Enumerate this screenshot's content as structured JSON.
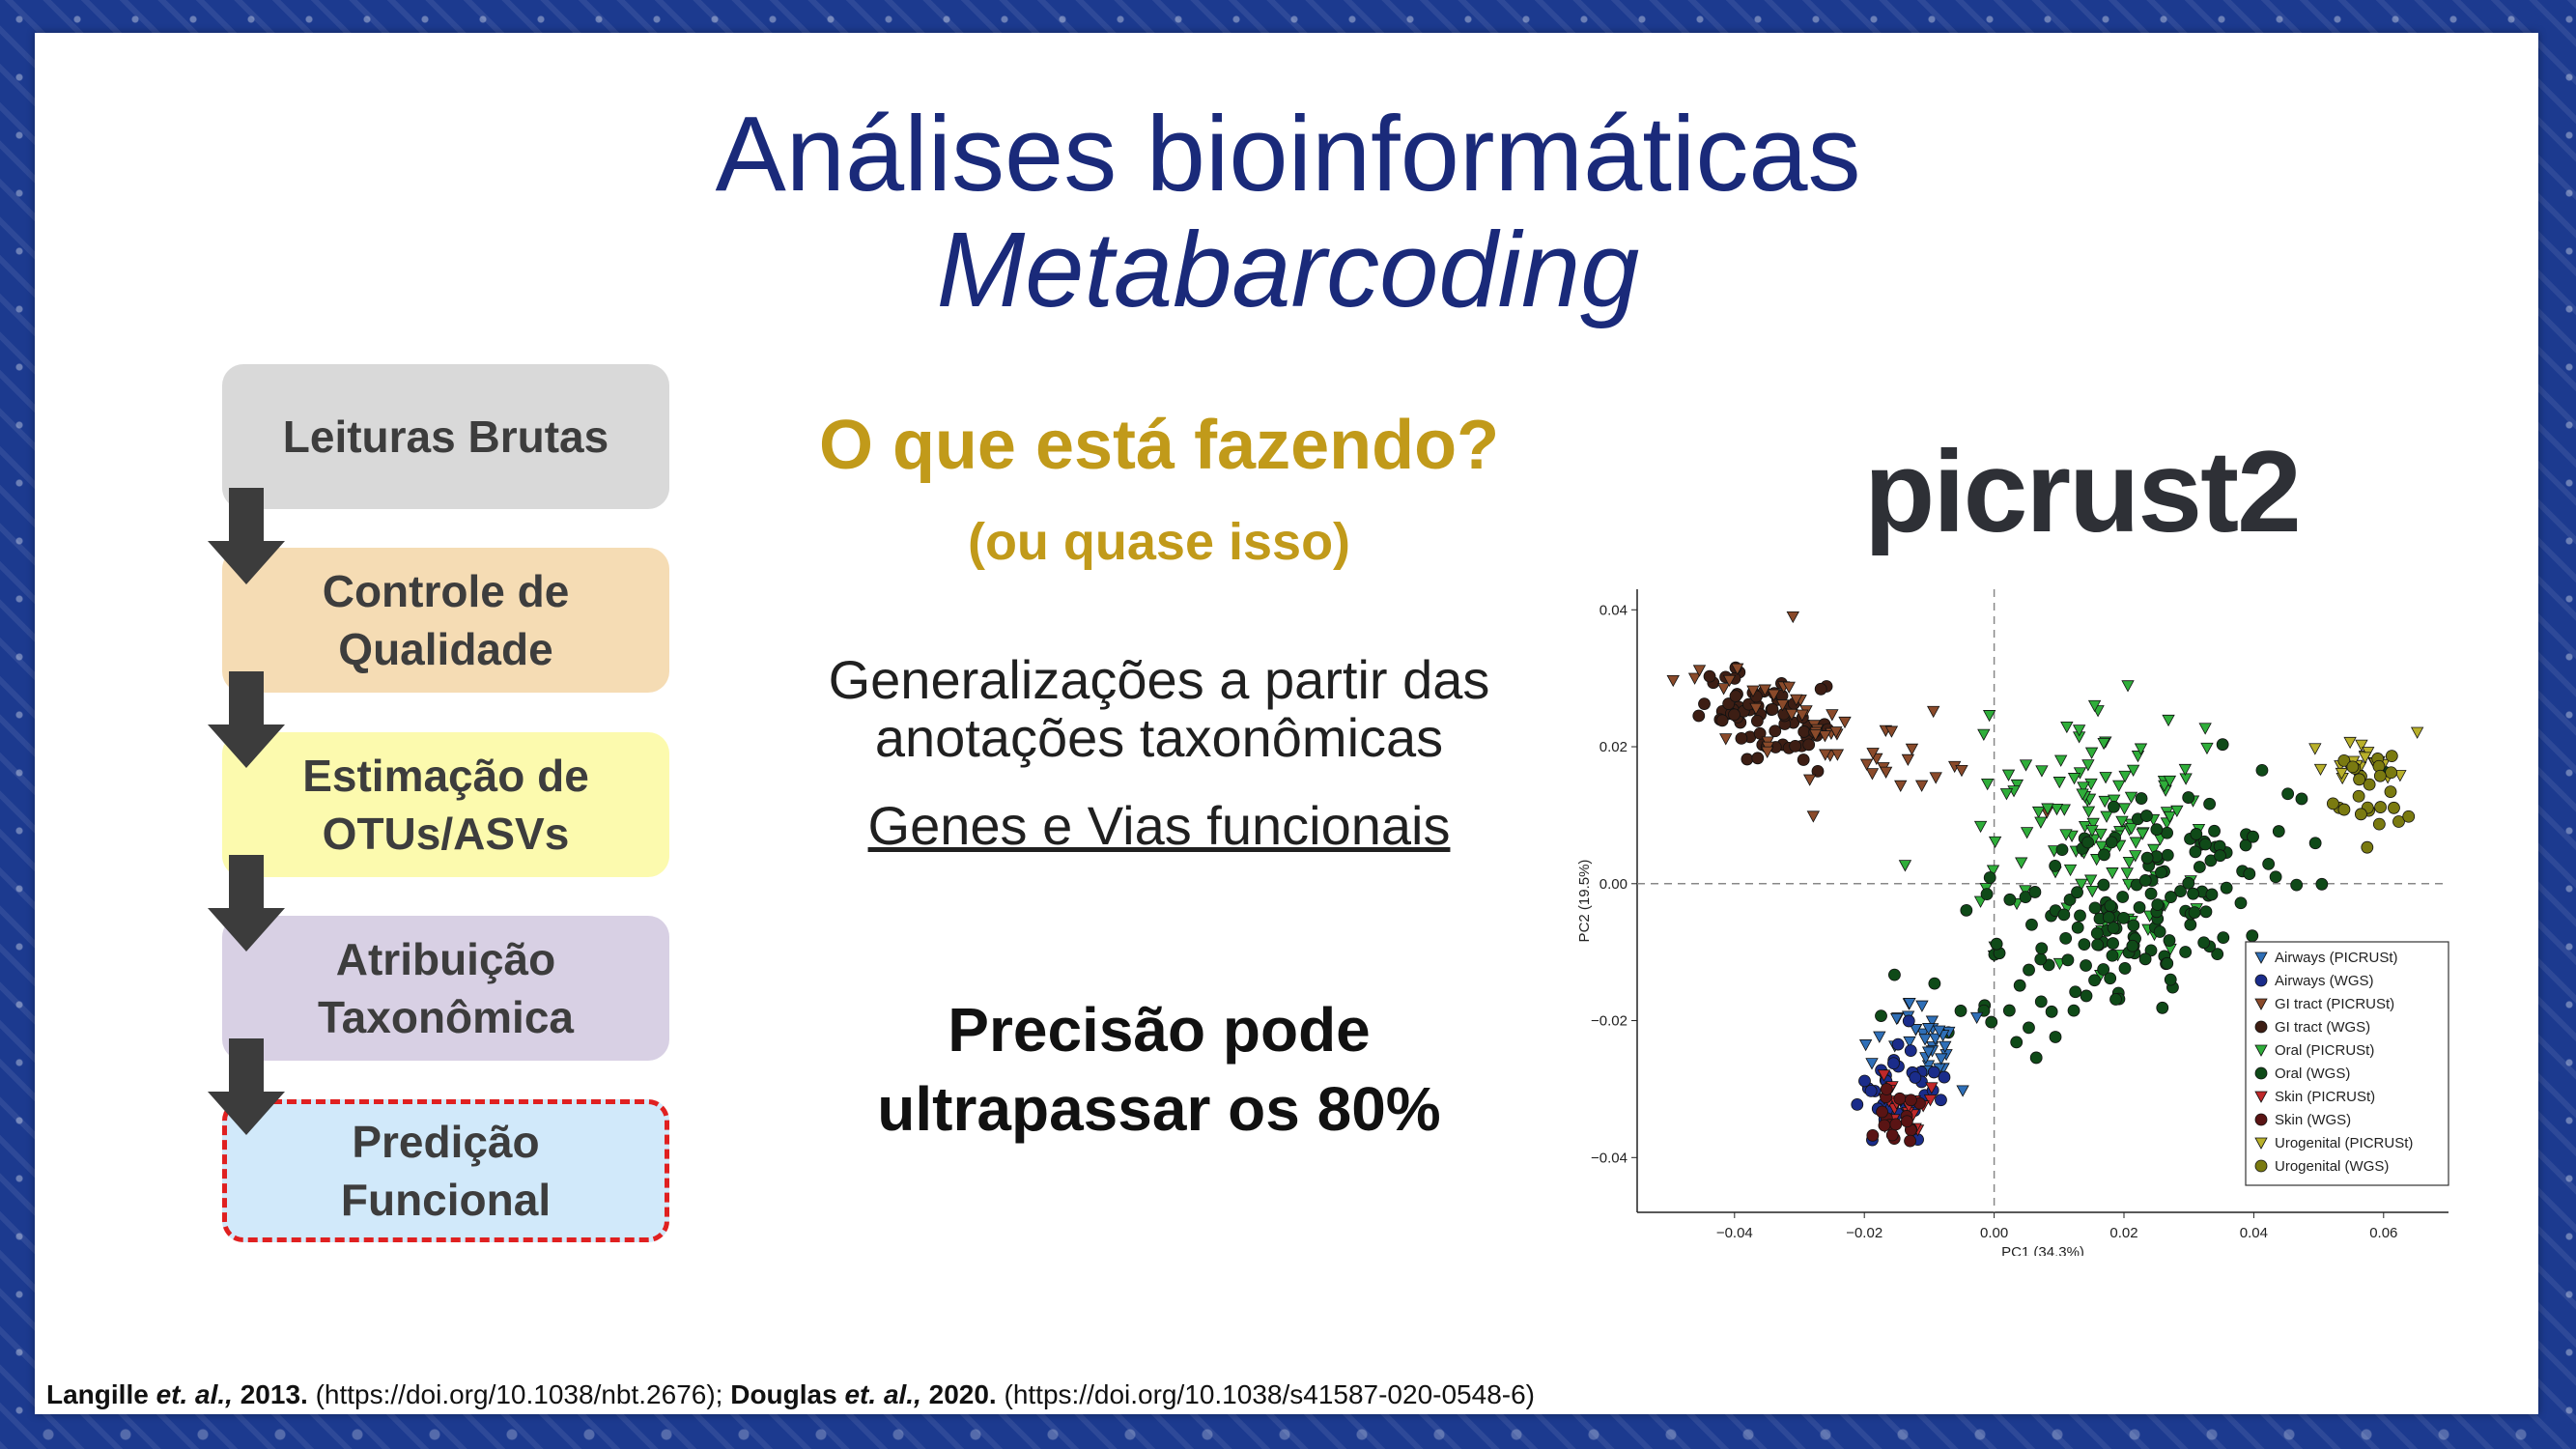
{
  "title": {
    "line1": "Análises bioinformáticas",
    "line2": "Metabarcoding"
  },
  "pipeline": [
    "Leituras Brutas",
    "Controle de\nQualidade",
    "Estimação de\nOTUs/ASVs",
    "Atribuição\nTaxonômica",
    "Predição\nFuncional"
  ],
  "question": {
    "main": "O que está fazendo?",
    "sub": "(ou quase isso)"
  },
  "generalization": {
    "line1": "Generalizações a partir das",
    "line2": "anotações taxonômicas",
    "link": "Genes e Vias funcionais"
  },
  "precision": {
    "line1": "Precisão pode",
    "line2": "ultrapassar os 80%"
  },
  "logo": "picrust2",
  "colors": {
    "title": "#1a2a7a",
    "accent": "#c19a1a",
    "highlight_border": "#e02020"
  },
  "reference": {
    "a1": "Langille",
    "a1_et": "et. al.,",
    "a1_year": "2013.",
    "a1_doi": "(https://doi.org/10.1038/nbt.2676);",
    "a2": "Douglas",
    "a2_et": "et. al.,",
    "a2_year": "2020.",
    "a2_doi": "(https://doi.org/10.1038/s41587-020-0548-6)"
  },
  "chart_data": {
    "type": "scatter",
    "xlabel": "PC1 (34.3%)",
    "ylabel": "PC2 (19.5%)",
    "xlim": [
      -0.055,
      0.07
    ],
    "ylim": [
      -0.048,
      0.043
    ],
    "xticks": [
      "−0.04",
      "−0.02",
      "0.00",
      "0.02",
      "0.04",
      "0.06"
    ],
    "yticks": [
      "0.04",
      "0.02",
      "0.00",
      "−0.02",
      "−0.04"
    ],
    "legend": [
      {
        "label": "Airways (PICRUSt)",
        "color": "#2f6fb7",
        "marker": "triangle"
      },
      {
        "label": "Airways (WGS)",
        "color": "#1a2c8a",
        "marker": "circle"
      },
      {
        "label": "GI tract (PICRUSt)",
        "color": "#8a4a2a",
        "marker": "triangle"
      },
      {
        "label": "GI tract (WGS)",
        "color": "#3d1e14",
        "marker": "circle"
      },
      {
        "label": "Oral (PICRUSt)",
        "color": "#2fae3a",
        "marker": "triangle"
      },
      {
        "label": "Oral (WGS)",
        "color": "#0f4a18",
        "marker": "circle"
      },
      {
        "label": "Skin (PICRUSt)",
        "color": "#c0282a",
        "marker": "triangle"
      },
      {
        "label": "Skin (WGS)",
        "color": "#5a1414",
        "marker": "circle"
      },
      {
        "label": "Urogenital (PICRUSt)",
        "color": "#b8b02a",
        "marker": "triangle"
      },
      {
        "label": "Urogenital (WGS)",
        "color": "#7a7a10",
        "marker": "circle"
      }
    ],
    "clusters": [
      {
        "series": 3,
        "xc": -0.035,
        "yc": 0.024,
        "sx": 0.005,
        "sy": 0.003,
        "n": 70,
        "slope": -0.2
      },
      {
        "series": 2,
        "xc": -0.025,
        "yc": 0.022,
        "sx": 0.01,
        "sy": 0.003,
        "n": 55,
        "slope": -0.35
      },
      {
        "series": 4,
        "xc": 0.015,
        "yc": 0.007,
        "sx": 0.01,
        "sy": 0.009,
        "n": 130,
        "slope": 0
      },
      {
        "series": 5,
        "xc": 0.02,
        "yc": -0.004,
        "sx": 0.014,
        "sy": 0.007,
        "n": 170,
        "slope": 0.45
      },
      {
        "series": 0,
        "xc": -0.01,
        "yc": -0.023,
        "sx": 0.003,
        "sy": 0.003,
        "n": 35,
        "slope": 0
      },
      {
        "series": 1,
        "xc": -0.015,
        "yc": -0.03,
        "sx": 0.003,
        "sy": 0.004,
        "n": 35,
        "slope": 0
      },
      {
        "series": 6,
        "xc": -0.014,
        "yc": -0.032,
        "sx": 0.002,
        "sy": 0.002,
        "n": 20,
        "slope": 0
      },
      {
        "series": 7,
        "xc": -0.015,
        "yc": -0.034,
        "sx": 0.002,
        "sy": 0.002,
        "n": 18,
        "slope": 0
      },
      {
        "series": 8,
        "xc": 0.055,
        "yc": 0.018,
        "sx": 0.004,
        "sy": 0.002,
        "n": 22,
        "slope": 0
      },
      {
        "series": 9,
        "xc": 0.057,
        "yc": 0.013,
        "sx": 0.003,
        "sy": 0.003,
        "n": 25,
        "slope": 0
      }
    ]
  }
}
